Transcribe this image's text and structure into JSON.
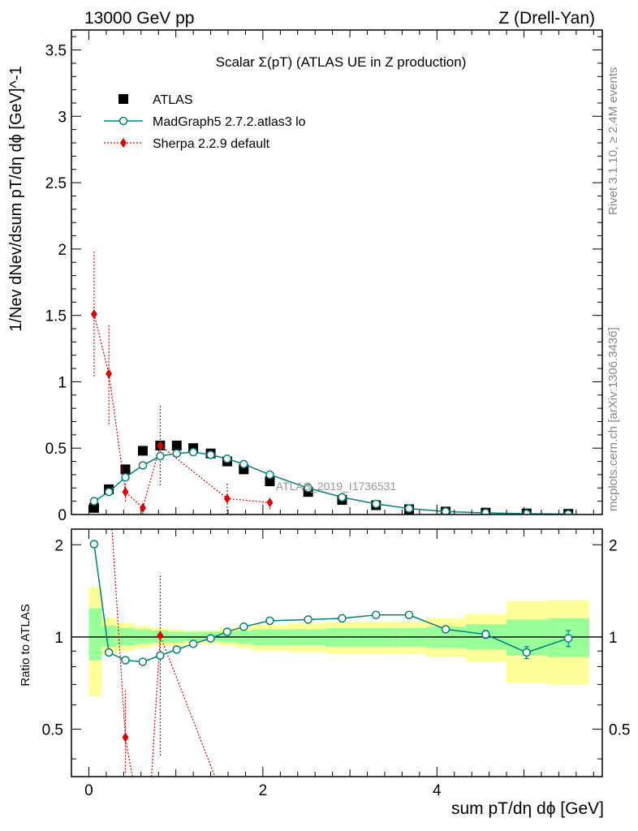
{
  "header": {
    "energy": "13000 GeV pp",
    "process": "Z (Drell-Yan)"
  },
  "side": {
    "rivet": "Rivet 3.1.10, ≥ 2.4M events",
    "mcplots": "mcplots.cern.ch [arXiv:1306.3436]"
  },
  "chart_data": {
    "type": "scatter",
    "title": "Scalar Σ(pT) (ATLAS UE in Z production)",
    "watermark": "ATLAS_2019_I1736531",
    "xlabel": "sum pT/dη dϕ [GeV]",
    "ylabel": "1/Nev dNev/dsum pT/dη dϕ [GeV]^-1",
    "ratio_ylabel": "Ratio to ATLAS",
    "xlim": [
      -0.2,
      5.9
    ],
    "ylim": [
      0,
      3.65
    ],
    "ratio_ylim": [
      0.35,
      2.25
    ],
    "x_ticks": [
      "0",
      "2",
      "4"
    ],
    "y_ticks": [
      "0",
      "0.5",
      "1",
      "1.5",
      "2",
      "2.5",
      "3",
      "3.5"
    ],
    "ratio_ticks": [
      "0.5",
      "1",
      "2"
    ],
    "legend": [
      "ATLAS",
      "MadGraph5 2.7.2.atlas3 lo",
      "Sherpa 2.2.9 default"
    ],
    "colors": {
      "data": "#000000",
      "madgraph": "#008080",
      "sherpa": "#e00000",
      "band_inner": "#99ff99",
      "band_outer": "#ffff99"
    },
    "data": {
      "x": [
        0.06,
        0.23,
        0.42,
        0.62,
        0.82,
        1.01,
        1.2,
        1.4,
        1.59,
        1.78,
        2.08,
        2.52,
        2.91,
        3.3,
        3.68,
        4.1,
        4.56,
        5.03,
        5.51
      ],
      "y": [
        0.05,
        0.19,
        0.34,
        0.48,
        0.52,
        0.52,
        0.5,
        0.46,
        0.4,
        0.34,
        0.25,
        0.17,
        0.11,
        0.07,
        0.04,
        0.022,
        0.014,
        0.008,
        0.005
      ]
    },
    "madgraph": {
      "x": [
        0.06,
        0.23,
        0.42,
        0.62,
        0.82,
        1.01,
        1.2,
        1.4,
        1.59,
        1.78,
        2.08,
        2.52,
        2.91,
        3.3,
        3.68,
        4.1,
        4.56,
        5.03,
        5.51
      ],
      "y": [
        0.1,
        0.17,
        0.28,
        0.37,
        0.44,
        0.46,
        0.47,
        0.45,
        0.42,
        0.38,
        0.3,
        0.2,
        0.13,
        0.08,
        0.045,
        0.022,
        0.012,
        0.006,
        0.003
      ]
    },
    "sherpa": {
      "x": [
        0.06,
        0.23,
        0.42,
        0.62,
        0.82,
        1.59,
        2.08
      ],
      "y": [
        1.51,
        1.06,
        0.17,
        0.05,
        0.52,
        0.12,
        0.09
      ],
      "yerr": [
        0.47,
        0.38,
        0.07,
        0.05,
        0.3,
        0.12,
        0.05
      ]
    },
    "ratio": {
      "bins": [
        0,
        0.15,
        0.32,
        0.52,
        0.72,
        0.91,
        1.1,
        1.3,
        1.5,
        1.69,
        1.88,
        2.3,
        2.72,
        3.1,
        3.5,
        3.88,
        4.33,
        4.8,
        5.27,
        5.75
      ],
      "inner_lo": [
        0.84,
        0.93,
        0.94,
        0.95,
        0.96,
        0.96,
        0.97,
        0.97,
        0.96,
        0.95,
        0.94,
        0.94,
        0.93,
        0.93,
        0.93,
        0.92,
        0.91,
        0.87,
        0.86
      ],
      "inner_hi": [
        1.24,
        1.09,
        1.07,
        1.06,
        1.05,
        1.04,
        1.04,
        1.04,
        1.04,
        1.05,
        1.06,
        1.06,
        1.07,
        1.07,
        1.07,
        1.08,
        1.1,
        1.14,
        1.15
      ],
      "outer_lo": [
        0.64,
        0.88,
        0.9,
        0.92,
        0.94,
        0.94,
        0.95,
        0.95,
        0.94,
        0.92,
        0.9,
        0.89,
        0.88,
        0.88,
        0.88,
        0.86,
        0.83,
        0.71,
        0.7
      ],
      "outer_hi": [
        1.45,
        1.16,
        1.11,
        1.09,
        1.07,
        1.06,
        1.05,
        1.05,
        1.07,
        1.09,
        1.1,
        1.11,
        1.12,
        1.12,
        1.12,
        1.15,
        1.19,
        1.31,
        1.32
      ],
      "madgraph_x": [
        0.06,
        0.23,
        0.42,
        0.62,
        0.82,
        1.01,
        1.2,
        1.4,
        1.59,
        1.78,
        2.08,
        2.52,
        2.91,
        3.3,
        3.68,
        4.1,
        4.56,
        5.03,
        5.51
      ],
      "madgraph_y": [
        2.01,
        0.89,
        0.84,
        0.83,
        0.87,
        0.91,
        0.95,
        0.99,
        1.04,
        1.08,
        1.13,
        1.14,
        1.15,
        1.18,
        1.18,
        1.06,
        1.02,
        0.89,
        0.99
      ],
      "madgraph_err": [
        0.02,
        0.01,
        0.01,
        0.01,
        0.01,
        0.01,
        0.01,
        0.01,
        0.01,
        0.01,
        0.01,
        0.01,
        0.01,
        0.01,
        0.01,
        0.02,
        0.03,
        0.04,
        0.06
      ],
      "sherpa_x": [
        0.42,
        0.82
      ],
      "sherpa_y": [
        0.47,
        1.01
      ],
      "sherpa_err": [
        0.2,
        0.6
      ]
    }
  }
}
